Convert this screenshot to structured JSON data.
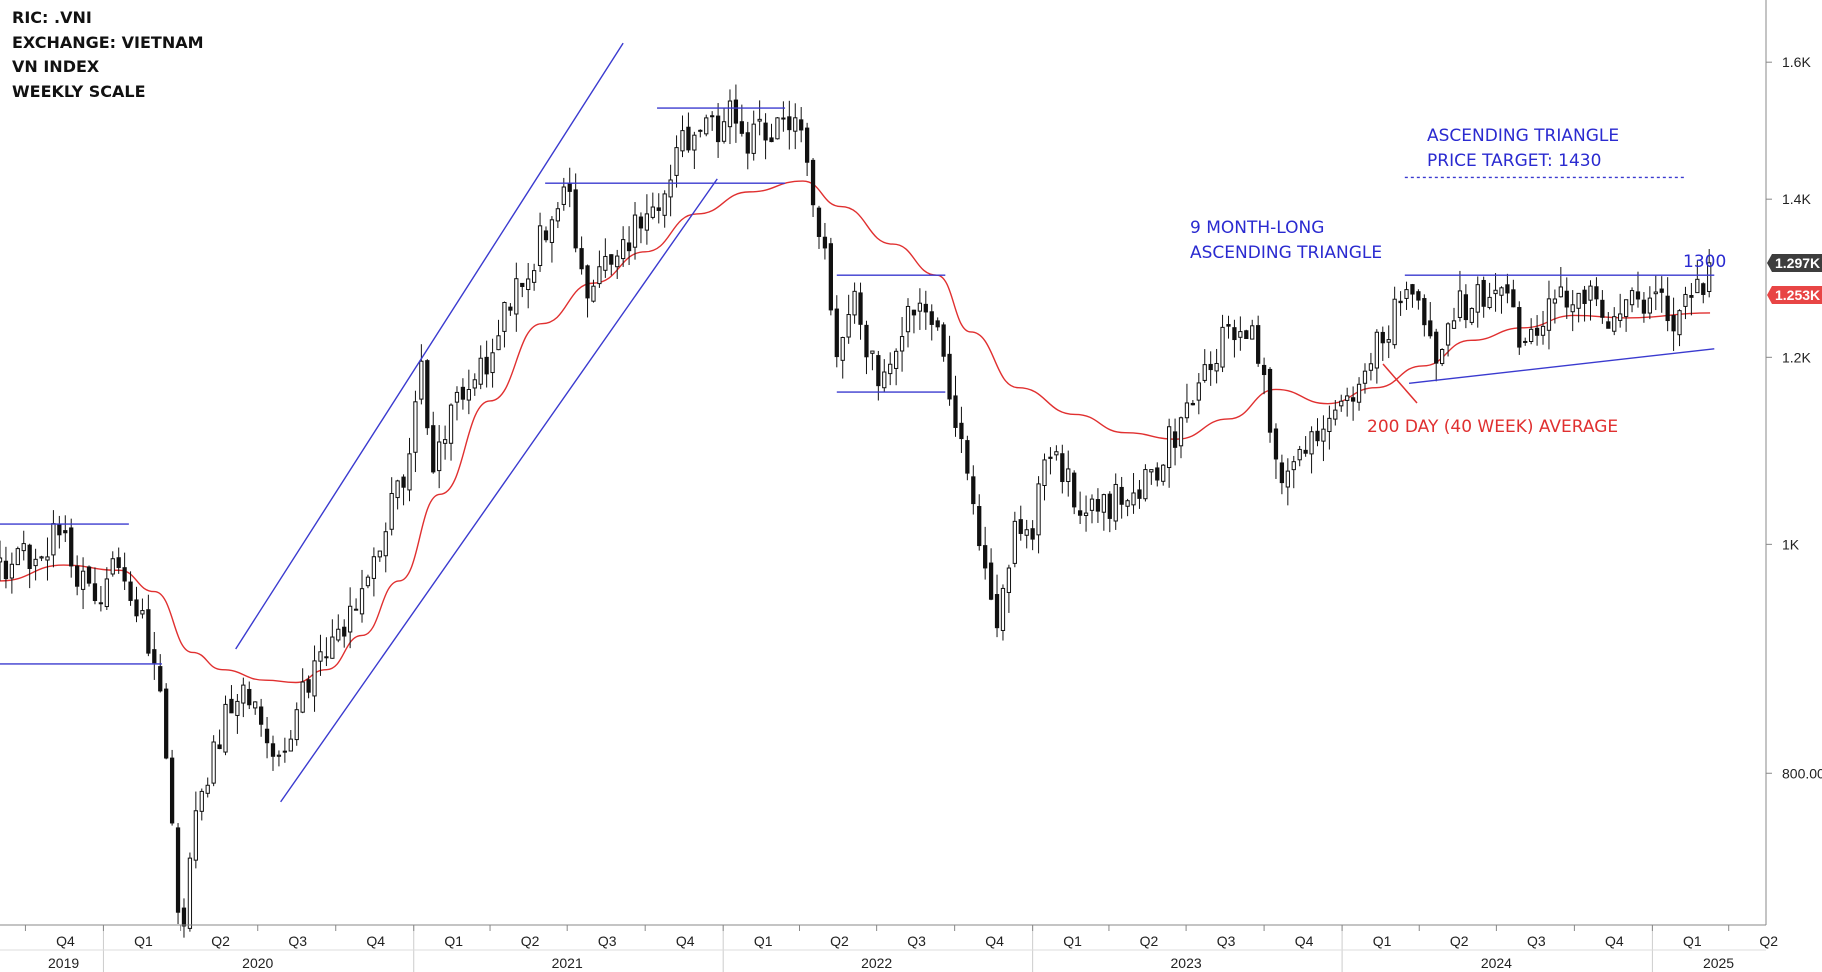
{
  "info": {
    "lines": [
      "RIC: .VNI",
      "EXCHANGE: VIETNAM",
      "VN INDEX",
      "WEEKLY SCALE"
    ]
  },
  "annotations": {
    "target_title": "ASCENDING TRIANGLE",
    "target_value": "PRICE TARGET: 1430",
    "triangle_line1": "9 MONTH-LONG",
    "triangle_line2": "ASCENDING TRIANGLE",
    "level_label": "1300",
    "ma_label": "200 DAY (40 WEEK) AVERAGE"
  },
  "badges": {
    "last_price": "1.297K",
    "ma_value": "1.253K"
  },
  "colors": {
    "candle": "#111111",
    "ma": "#e03030",
    "trendline": "#3a3acf",
    "annotation_blue": "#2a2ad0",
    "annotation_red": "#e03030",
    "badge_price": "#3d3d3d",
    "badge_ma": "#e84545",
    "axis": "#888888"
  },
  "chart_data": {
    "type": "candlestick",
    "title": "",
    "xlabel": "",
    "ylabel": "",
    "y_scale": "log",
    "ylim": [
      690,
      1700
    ],
    "xlim": [
      "2019-09-01",
      "2025-05-15"
    ],
    "yticks": [
      {
        "value": 1600,
        "label": "1.6K"
      },
      {
        "value": 1400,
        "label": "1.4K"
      },
      {
        "value": 1200,
        "label": "1.2K"
      },
      {
        "value": 1000,
        "label": "1K"
      },
      {
        "value": 800,
        "label": "800.00"
      }
    ],
    "quarter_ticks": [
      {
        "label": "Q4",
        "date": "2019-10-01"
      },
      {
        "label": "Q1",
        "date": "2020-01-01"
      },
      {
        "label": "Q2",
        "date": "2020-04-01"
      },
      {
        "label": "Q3",
        "date": "2020-07-01"
      },
      {
        "label": "Q4",
        "date": "2020-10-01"
      },
      {
        "label": "Q1",
        "date": "2021-01-01"
      },
      {
        "label": "Q2",
        "date": "2021-04-01"
      },
      {
        "label": "Q3",
        "date": "2021-07-01"
      },
      {
        "label": "Q4",
        "date": "2021-10-01"
      },
      {
        "label": "Q1",
        "date": "2022-01-01"
      },
      {
        "label": "Q2",
        "date": "2022-04-01"
      },
      {
        "label": "Q3",
        "date": "2022-07-01"
      },
      {
        "label": "Q4",
        "date": "2022-10-01"
      },
      {
        "label": "Q1",
        "date": "2023-01-01"
      },
      {
        "label": "Q2",
        "date": "2023-04-01"
      },
      {
        "label": "Q3",
        "date": "2023-07-01"
      },
      {
        "label": "Q4",
        "date": "2023-10-01"
      },
      {
        "label": "Q1",
        "date": "2024-01-01"
      },
      {
        "label": "Q2",
        "date": "2024-04-01"
      },
      {
        "label": "Q3",
        "date": "2024-07-01"
      },
      {
        "label": "Q4",
        "date": "2024-10-01"
      },
      {
        "label": "Q1",
        "date": "2025-01-01"
      },
      {
        "label": "Q2",
        "date": "2025-04-01"
      }
    ],
    "year_ticks": [
      {
        "label": "2019",
        "date": "2019-11-15"
      },
      {
        "label": "2020",
        "date": "2020-07-01"
      },
      {
        "label": "2021",
        "date": "2021-07-01"
      },
      {
        "label": "2022",
        "date": "2022-07-01"
      },
      {
        "label": "2023",
        "date": "2023-07-01"
      },
      {
        "label": "2024",
        "date": "2024-07-01"
      },
      {
        "label": "2025",
        "date": "2025-03-20"
      }
    ],
    "year_separators": [
      "2020-01-01",
      "2021-01-01",
      "2022-01-01",
      "2023-01-01",
      "2024-01-01",
      "2025-01-01"
    ],
    "price_path": [
      [
        "2019-09-01",
        980
      ],
      [
        "2019-10-15",
        995
      ],
      [
        "2019-11-15",
        1020
      ],
      [
        "2019-12-01",
        965
      ],
      [
        "2019-12-31",
        960
      ],
      [
        "2020-01-20",
        990
      ],
      [
        "2020-02-10",
        940
      ],
      [
        "2020-02-25",
        910
      ],
      [
        "2020-03-08",
        855
      ],
      [
        "2020-03-20",
        770
      ],
      [
        "2020-03-28",
        705
      ],
      [
        "2020-04-05",
        700
      ],
      [
        "2020-04-15",
        760
      ],
      [
        "2020-05-01",
        790
      ],
      [
        "2020-05-20",
        840
      ],
      [
        "2020-06-10",
        870
      ],
      [
        "2020-06-25",
        865
      ],
      [
        "2020-07-10",
        835
      ],
      [
        "2020-07-28",
        808
      ],
      [
        "2020-08-15",
        848
      ],
      [
        "2020-09-10",
        895
      ],
      [
        "2020-10-05",
        910
      ],
      [
        "2020-11-05",
        960
      ],
      [
        "2020-11-30",
        1020
      ],
      [
        "2020-12-25",
        1080
      ],
      [
        "2021-01-10",
        1180
      ],
      [
        "2021-01-25",
        1070
      ],
      [
        "2021-02-15",
        1150
      ],
      [
        "2021-03-20",
        1180
      ],
      [
        "2021-04-20",
        1250
      ],
      [
        "2021-05-20",
        1320
      ],
      [
        "2021-06-20",
        1400
      ],
      [
        "2021-07-05",
        1395
      ],
      [
        "2021-07-20",
        1280
      ],
      [
        "2021-08-10",
        1330
      ],
      [
        "2021-09-10",
        1345
      ],
      [
        "2021-10-10",
        1380
      ],
      [
        "2021-10-25",
        1430
      ],
      [
        "2021-11-15",
        1480
      ],
      [
        "2021-12-10",
        1490
      ],
      [
        "2022-01-10",
        1520
      ],
      [
        "2022-01-25",
        1470
      ],
      [
        "2022-02-20",
        1500
      ],
      [
        "2022-03-20",
        1490
      ],
      [
        "2022-04-05",
        1510
      ],
      [
        "2022-04-20",
        1380
      ],
      [
        "2022-05-05",
        1300
      ],
      [
        "2022-05-18",
        1180
      ],
      [
        "2022-06-05",
        1290
      ],
      [
        "2022-06-25",
        1190
      ],
      [
        "2022-07-10",
        1180
      ],
      [
        "2022-08-05",
        1260
      ],
      [
        "2022-08-25",
        1280
      ],
      [
        "2022-09-15",
        1240
      ],
      [
        "2022-10-01",
        1130
      ],
      [
        "2022-10-20",
        1040
      ],
      [
        "2022-11-10",
        960
      ],
      [
        "2022-11-20",
        915
      ],
      [
        "2022-12-10",
        1030
      ],
      [
        "2022-12-30",
        1010
      ],
      [
        "2023-01-20",
        1090
      ],
      [
        "2023-02-20",
        1050
      ],
      [
        "2023-03-15",
        1030
      ],
      [
        "2023-04-15",
        1050
      ],
      [
        "2023-05-20",
        1060
      ],
      [
        "2023-06-20",
        1120
      ],
      [
        "2023-07-20",
        1180
      ],
      [
        "2023-08-25",
        1240
      ],
      [
        "2023-09-15",
        1230
      ],
      [
        "2023-10-05",
        1150
      ],
      [
        "2023-10-25",
        1050
      ],
      [
        "2023-11-15",
        1100
      ],
      [
        "2023-12-15",
        1110
      ],
      [
        "2024-01-10",
        1150
      ],
      [
        "2024-02-10",
        1210
      ],
      [
        "2024-03-15",
        1270
      ],
      [
        "2024-04-05",
        1260
      ],
      [
        "2024-04-20",
        1200
      ],
      [
        "2024-05-10",
        1250
      ],
      [
        "2024-06-10",
        1280
      ],
      [
        "2024-07-05",
        1290
      ],
      [
        "2024-07-25",
        1230
      ],
      [
        "2024-08-10",
        1240
      ],
      [
        "2024-09-10",
        1270
      ],
      [
        "2024-10-05",
        1290
      ],
      [
        "2024-10-25",
        1260
      ],
      [
        "2024-11-15",
        1225
      ],
      [
        "2024-12-10",
        1265
      ],
      [
        "2025-01-05",
        1270
      ],
      [
        "2025-01-25",
        1250
      ],
      [
        "2025-02-20",
        1290
      ],
      [
        "2025-03-10",
        1297
      ]
    ],
    "moving_average": {
      "name": "200 DAY (40 WEEK) AVERAGE",
      "points": [
        [
          "2019-09-01",
          965
        ],
        [
          "2019-11-15",
          980
        ],
        [
          "2020-01-20",
          975
        ],
        [
          "2020-03-01",
          955
        ],
        [
          "2020-04-15",
          900
        ],
        [
          "2020-05-20",
          885
        ],
        [
          "2020-07-10",
          876
        ],
        [
          "2020-08-15",
          874
        ],
        [
          "2020-09-20",
          885
        ],
        [
          "2020-11-01",
          915
        ],
        [
          "2020-12-15",
          965
        ],
        [
          "2021-02-01",
          1050
        ],
        [
          "2021-04-01",
          1150
        ],
        [
          "2021-06-01",
          1240
        ],
        [
          "2021-08-01",
          1290
        ],
        [
          "2021-10-01",
          1330
        ],
        [
          "2021-12-01",
          1380
        ],
        [
          "2022-02-01",
          1410
        ],
        [
          "2022-04-05",
          1425
        ],
        [
          "2022-05-20",
          1390
        ],
        [
          "2022-07-20",
          1340
        ],
        [
          "2022-09-10",
          1300
        ],
        [
          "2022-10-20",
          1230
        ],
        [
          "2022-12-15",
          1165
        ],
        [
          "2023-02-20",
          1135
        ],
        [
          "2023-04-20",
          1115
        ],
        [
          "2023-06-20",
          1108
        ],
        [
          "2023-08-20",
          1130
        ],
        [
          "2023-10-15",
          1163
        ],
        [
          "2023-12-15",
          1147
        ],
        [
          "2024-02-10",
          1165
        ],
        [
          "2024-04-05",
          1190
        ],
        [
          "2024-06-01",
          1220
        ],
        [
          "2024-08-01",
          1235
        ],
        [
          "2024-10-01",
          1250
        ],
        [
          "2024-12-01",
          1247
        ],
        [
          "2025-03-10",
          1253
        ]
      ]
    },
    "trendlines": [
      {
        "name": "upper-channel",
        "from": [
          "2020-06-05",
          903
        ],
        "to": [
          "2021-09-05",
          1630
        ]
      },
      {
        "name": "lower-channel",
        "from": [
          "2020-07-28",
          778
        ],
        "to": [
          "2021-12-25",
          1428
        ]
      },
      {
        "name": "resistance-2019",
        "from": [
          "2019-09-01",
          1020
        ],
        "to": [
          "2020-01-31",
          1020
        ]
      },
      {
        "name": "support-2020",
        "from": [
          "2019-09-01",
          890
        ],
        "to": [
          "2020-03-10",
          890
        ]
      },
      {
        "name": "resistance-2021-mid",
        "from": [
          "2021-06-05",
          1422
        ],
        "to": [
          "2022-03-15",
          1422
        ]
      },
      {
        "name": "resistance-2021-top",
        "from": [
          "2021-10-15",
          1530
        ],
        "to": [
          "2022-03-15",
          1530
        ]
      },
      {
        "name": "range-2022-top",
        "from": [
          "2022-05-15",
          1300
        ],
        "to": [
          "2022-09-20",
          1300
        ]
      },
      {
        "name": "range-2022-bottom",
        "from": [
          "2022-05-15",
          1160
        ],
        "to": [
          "2022-09-20",
          1160
        ]
      },
      {
        "name": "triangle-resistance",
        "from": [
          "2024-03-15",
          1300
        ],
        "to": [
          "2025-03-15",
          1300
        ]
      },
      {
        "name": "triangle-support",
        "from": [
          "2024-03-20",
          1170
        ],
        "to": [
          "2025-03-15",
          1210
        ]
      }
    ],
    "target_line": {
      "value": 1430,
      "from": "2024-03-15",
      "to": "2025-02-10"
    }
  }
}
